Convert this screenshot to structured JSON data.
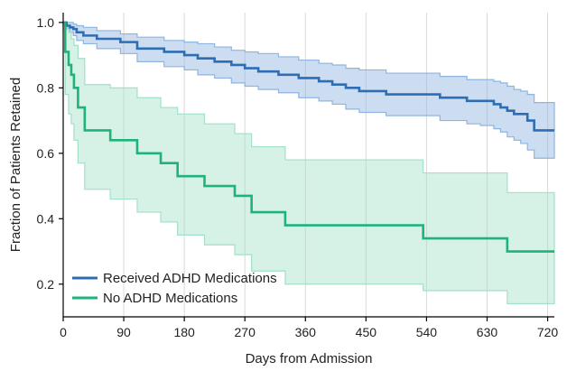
{
  "chart_data": {
    "type": "line",
    "xlabel": "Days from Admission",
    "ylabel": "Fraction of Patients Retained",
    "xlim": [
      0,
      730
    ],
    "ylim": [
      0.1,
      1.03
    ],
    "x_ticks": [
      0,
      90,
      180,
      270,
      360,
      450,
      540,
      630,
      720
    ],
    "y_ticks": [
      0.2,
      0.4,
      0.6,
      0.8,
      1.0
    ],
    "y_tick_labels": [
      "0.2",
      "0.4",
      "0.6",
      "0.8",
      "1.0"
    ],
    "grid": "vertical",
    "legend_position": "bottom-left",
    "series": [
      {
        "name": "Received ADHD Medications",
        "color": "#2e6db4",
        "band_color": "#8fb4df",
        "x": [
          0,
          5,
          10,
          15,
          20,
          30,
          50,
          85,
          110,
          150,
          180,
          200,
          225,
          250,
          270,
          290,
          320,
          350,
          380,
          400,
          420,
          440,
          480,
          520,
          560,
          600,
          620,
          640,
          650,
          660,
          670,
          680,
          690,
          700,
          730
        ],
        "y": [
          1.0,
          0.99,
          0.985,
          0.98,
          0.97,
          0.96,
          0.95,
          0.94,
          0.92,
          0.91,
          0.9,
          0.89,
          0.88,
          0.87,
          0.86,
          0.85,
          0.84,
          0.83,
          0.82,
          0.81,
          0.8,
          0.79,
          0.78,
          0.78,
          0.77,
          0.76,
          0.76,
          0.75,
          0.74,
          0.73,
          0.72,
          0.72,
          0.7,
          0.67,
          0.67
        ],
        "lower": [
          0.99,
          0.98,
          0.97,
          0.96,
          0.945,
          0.935,
          0.92,
          0.905,
          0.88,
          0.865,
          0.855,
          0.84,
          0.83,
          0.815,
          0.805,
          0.795,
          0.785,
          0.77,
          0.76,
          0.75,
          0.735,
          0.725,
          0.715,
          0.715,
          0.7,
          0.69,
          0.685,
          0.675,
          0.665,
          0.65,
          0.64,
          0.63,
          0.61,
          0.585,
          0.585
        ],
        "upper": [
          1.0,
          1.0,
          1.0,
          0.995,
          0.99,
          0.985,
          0.975,
          0.965,
          0.955,
          0.945,
          0.94,
          0.935,
          0.925,
          0.915,
          0.91,
          0.905,
          0.895,
          0.885,
          0.875,
          0.87,
          0.86,
          0.855,
          0.845,
          0.845,
          0.835,
          0.825,
          0.825,
          0.82,
          0.815,
          0.805,
          0.795,
          0.79,
          0.78,
          0.755,
          0.755
        ]
      },
      {
        "name": "No ADHD Medications",
        "color": "#1fb37a",
        "band_color": "#a3e0c8",
        "x": [
          0,
          3,
          8,
          12,
          16,
          22,
          32,
          70,
          110,
          145,
          170,
          210,
          255,
          280,
          330,
          400,
          535,
          590,
          660,
          730
        ],
        "y": [
          1.0,
          0.91,
          0.87,
          0.84,
          0.8,
          0.74,
          0.67,
          0.64,
          0.6,
          0.57,
          0.53,
          0.5,
          0.47,
          0.42,
          0.38,
          0.38,
          0.34,
          0.34,
          0.3,
          0.3
        ],
        "lower": [
          0.97,
          0.78,
          0.72,
          0.69,
          0.64,
          0.57,
          0.49,
          0.46,
          0.42,
          0.39,
          0.35,
          0.32,
          0.29,
          0.24,
          0.2,
          0.2,
          0.18,
          0.18,
          0.14,
          0.14
        ],
        "upper": [
          1.0,
          1.0,
          0.97,
          0.95,
          0.93,
          0.89,
          0.81,
          0.8,
          0.77,
          0.74,
          0.72,
          0.69,
          0.66,
          0.62,
          0.58,
          0.58,
          0.54,
          0.54,
          0.48,
          0.48
        ]
      }
    ]
  }
}
